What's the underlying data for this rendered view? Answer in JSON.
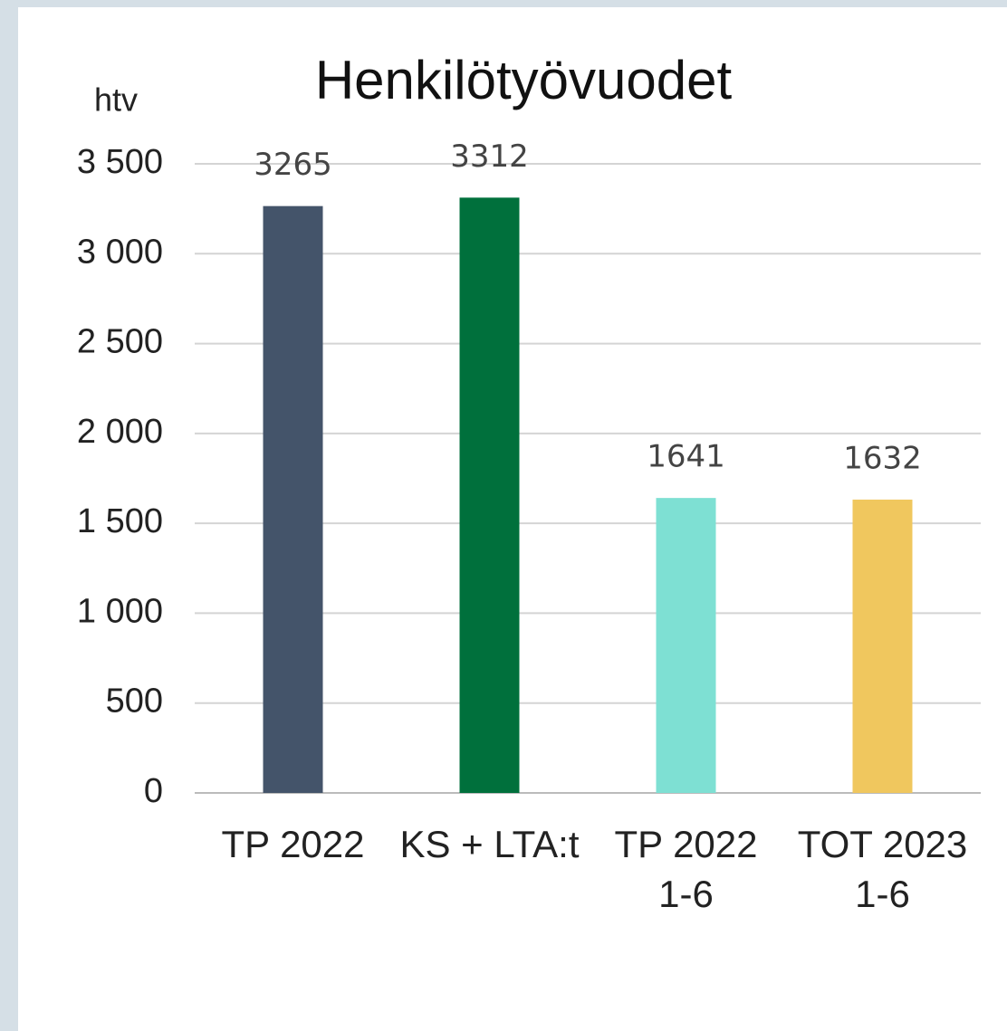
{
  "chart_data": {
    "type": "bar",
    "title": "Henkilötyövuodet",
    "y_label": "htv",
    "categories": [
      "TP 2022",
      "KS + LTA:t",
      "TP 2022\n1-6",
      "TOT 2023\n1-6"
    ],
    "values": [
      3265,
      3312,
      1641,
      1632
    ],
    "colors": [
      "#44546a",
      "#00703c",
      "#7ee0d3",
      "#f0c75e"
    ],
    "ylim": [
      0,
      3500
    ],
    "yticks": [
      0,
      500,
      {
        "value": 1000,
        "label": "1 000"
      },
      {
        "value": 1500,
        "label": "1 500"
      },
      {
        "value": 2000,
        "label": "2 000"
      },
      {
        "value": 2500,
        "label": "2 500"
      },
      {
        "value": 3000,
        "label": "3 000"
      },
      {
        "value": 3500,
        "label": "3 500"
      }
    ],
    "grid": true
  }
}
